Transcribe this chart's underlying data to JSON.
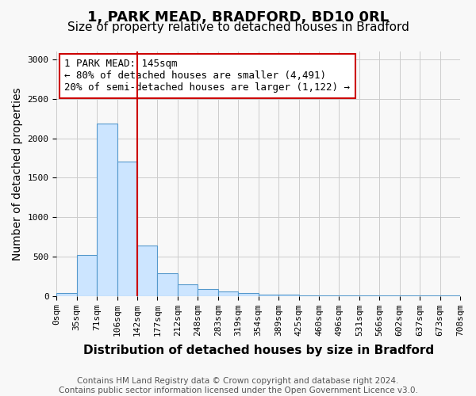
{
  "title1": "1, PARK MEAD, BRADFORD, BD10 0RL",
  "title2": "Size of property relative to detached houses in Bradford",
  "xlabel": "Distribution of detached houses by size in Bradford",
  "ylabel": "Number of detached properties",
  "footnote": "Contains HM Land Registry data © Crown copyright and database right 2024.\nContains public sector information licensed under the Open Government Licence v3.0.",
  "bin_labels": [
    "0sqm",
    "35sqm",
    "71sqm",
    "106sqm",
    "142sqm",
    "177sqm",
    "212sqm",
    "248sqm",
    "283sqm",
    "319sqm",
    "354sqm",
    "389sqm",
    "425sqm",
    "460sqm",
    "496sqm",
    "531sqm",
    "566sqm",
    "602sqm",
    "637sqm",
    "673sqm",
    "708sqm"
  ],
  "bar_values": [
    35,
    520,
    2190,
    1700,
    640,
    285,
    145,
    90,
    55,
    35,
    20,
    15,
    10,
    5,
    5,
    3,
    3,
    2,
    2,
    2
  ],
  "bar_color": "#cce5ff",
  "bar_edge_color": "#5599cc",
  "vline_x": 4,
  "vline_color": "#cc0000",
  "annotation_text": "1 PARK MEAD: 145sqm\n← 80% of detached houses are smaller (4,491)\n20% of semi-detached houses are larger (1,122) →",
  "annotation_box_color": "#ffffff",
  "annotation_box_edge": "#cc0000",
  "ylim": [
    0,
    3100
  ],
  "yticks": [
    0,
    500,
    1000,
    1500,
    2000,
    2500,
    3000
  ],
  "title1_fontsize": 13,
  "title2_fontsize": 11,
  "xlabel_fontsize": 11,
  "ylabel_fontsize": 10,
  "tick_fontsize": 8,
  "annotation_fontsize": 9,
  "footnote_fontsize": 7.5,
  "background_color": "#f8f8f8",
  "grid_color": "#cccccc"
}
